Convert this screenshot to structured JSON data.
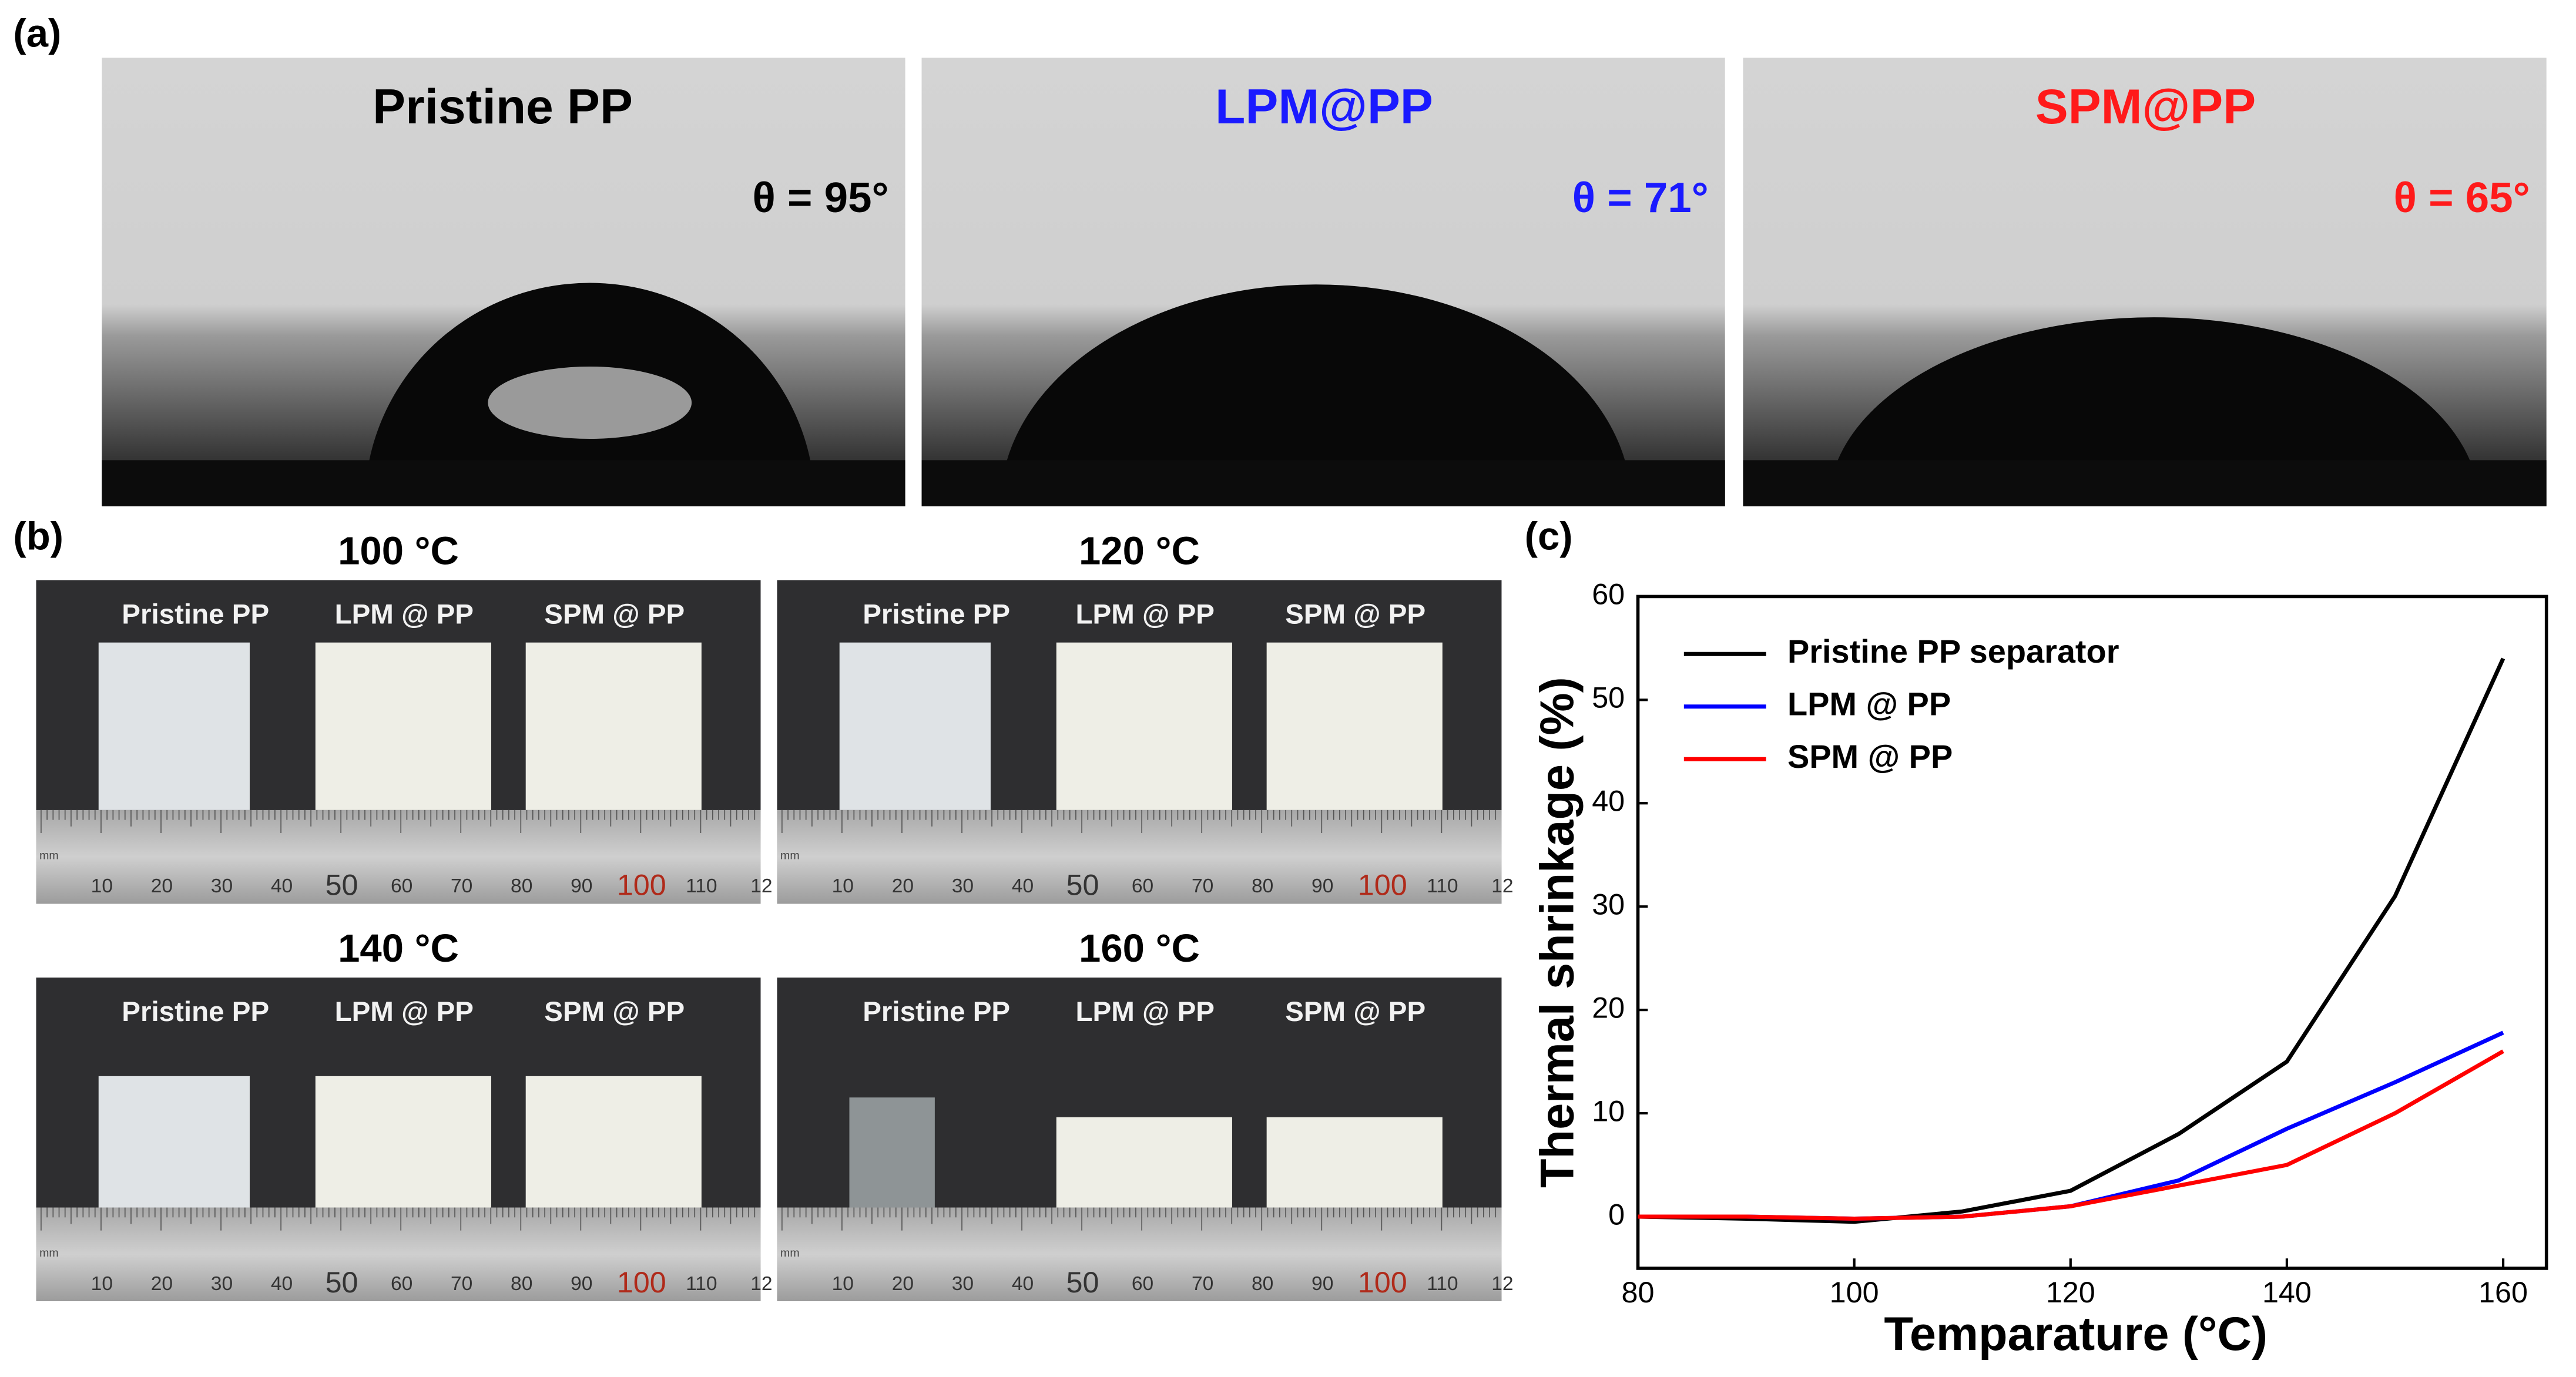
{
  "panel_a": {
    "label": "(a)",
    "images": [
      {
        "title": "Pristine PP",
        "angle": "θ = 95°",
        "color": "#000000"
      },
      {
        "title": "LPM@PP",
        "angle": "θ = 71°",
        "color": "#1a1aff"
      },
      {
        "title": "SPM@PP",
        "angle": "θ = 65°",
        "color": "#ff1a1a"
      }
    ]
  },
  "panel_b": {
    "label": "(b)",
    "photos": [
      {
        "title": "100 °C"
      },
      {
        "title": "120 °C"
      },
      {
        "title": "140 °C"
      },
      {
        "title": "160 °C"
      }
    ],
    "sample_labels": [
      "Pristine PP",
      "LPM @ PP",
      "SPM @ PP"
    ],
    "ruler_unit": "mm",
    "ruler_labels": [
      "10",
      "20",
      "30",
      "40",
      "50",
      "60",
      "70",
      "80",
      "90",
      "100",
      "110",
      "12"
    ]
  },
  "panel_c": {
    "label": "(c)"
  },
  "chart_data": {
    "type": "line",
    "xlabel": "Temparature (°C)",
    "ylabel": "Thermal shrinkage (%)",
    "x": [
      80,
      90,
      100,
      110,
      120,
      130,
      140,
      150,
      160
    ],
    "series": [
      {
        "name": "Pristine PP separator",
        "color": "#000000",
        "values": [
          0,
          -0.2,
          -0.5,
          0.5,
          2.5,
          8,
          15,
          31,
          54
        ]
      },
      {
        "name": "LPM @ PP",
        "color": "#0000ff",
        "values": [
          0,
          0,
          -0.2,
          0,
          1,
          3.5,
          8.5,
          13,
          17.8
        ]
      },
      {
        "name": "SPM @ PP",
        "color": "#ff0000",
        "values": [
          0,
          0,
          -0.2,
          0,
          1,
          3,
          5,
          10,
          16
        ]
      }
    ],
    "xlim": [
      80,
      164
    ],
    "ylim": [
      -5,
      60
    ],
    "xticks": [
      80,
      100,
      120,
      140,
      160
    ],
    "yticks": [
      0,
      10,
      20,
      30,
      40,
      50,
      60
    ],
    "legend": "upper-left"
  }
}
